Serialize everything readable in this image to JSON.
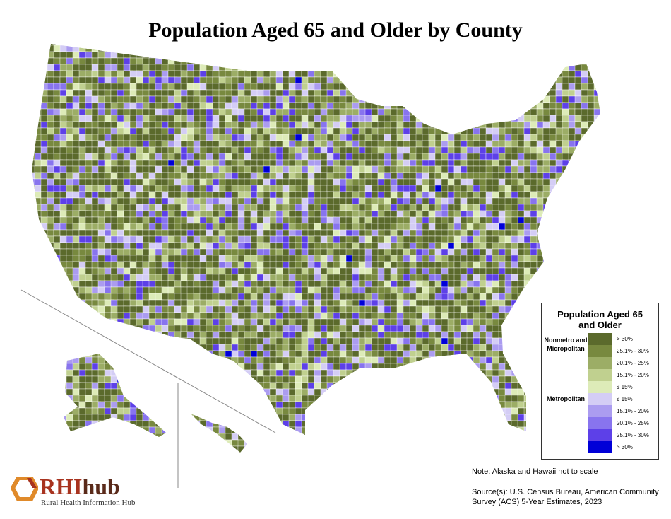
{
  "title": "Population Aged 65 and Older by County",
  "legend": {
    "title": "Population Aged 65 and Older",
    "groups": [
      {
        "label": "Nonmetro and Micropolitan",
        "items": [
          {
            "label": "> 30%",
            "color": "#5b6a2c"
          },
          {
            "label": "25.1% - 30%",
            "color": "#78893f"
          },
          {
            "label": "20.1% - 25%",
            "color": "#9cad66"
          },
          {
            "label": "15.1% - 20%",
            "color": "#c0d08f"
          },
          {
            "label": "≤ 15%",
            "color": "#ddebb8"
          }
        ]
      },
      {
        "label": "Metropolitan",
        "items": [
          {
            "label": "≤ 15%",
            "color": "#d4cdf5"
          },
          {
            "label": "15.1% - 20%",
            "color": "#ab9cf0"
          },
          {
            "label": "20.1% - 25%",
            "color": "#8874ee"
          },
          {
            "label": "25.1% - 30%",
            "color": "#5d40e8"
          },
          {
            "label": "> 30%",
            "color": "#0000d8"
          }
        ]
      }
    ]
  },
  "note": "Note: Alaska and Hawaii not to scale",
  "source": "Source(s): U.S. Census Bureau, American Community Survey (ACS) 5-Year Estimates, 2023",
  "logo": {
    "name": "RHI",
    "suffix": "hub",
    "tagline": "Rural Health Information Hub"
  }
}
